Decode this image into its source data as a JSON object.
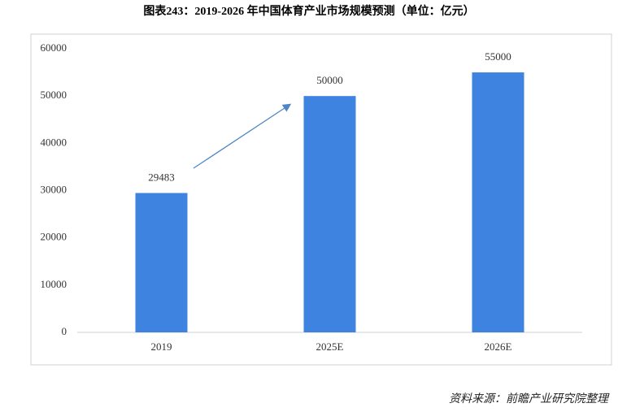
{
  "chart_data": {
    "type": "bar",
    "title": "图表243：2019-2026 年中国体育产业市场规模预测（单位：亿元）",
    "categories": [
      "2019",
      "2025E",
      "2026E"
    ],
    "values": [
      29483,
      50000,
      55000
    ],
    "color": "#3f83e0",
    "ylim": [
      0,
      60000
    ],
    "yticks": [
      0,
      10000,
      20000,
      30000,
      40000,
      50000,
      60000
    ],
    "grid": false,
    "source": "资料来源：前瞻产业研究院整理"
  }
}
